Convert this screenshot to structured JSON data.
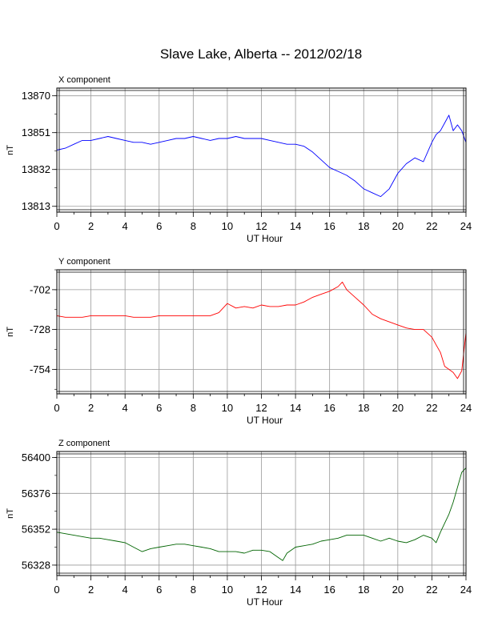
{
  "title": "Slave Lake, Alberta -- 2012/02/18",
  "chart_data": [
    {
      "type": "line",
      "panel_title": "X component",
      "xlabel": "UT Hour",
      "ylabel": "nT",
      "xlim": [
        0,
        24
      ],
      "ylim": [
        13810,
        13874
      ],
      "xticks": [
        0,
        2,
        4,
        6,
        8,
        10,
        12,
        14,
        16,
        18,
        20,
        22,
        24
      ],
      "yticks": [
        13813,
        13832,
        13851,
        13870
      ],
      "grid": true,
      "color": "#0000ff",
      "series": [
        {
          "x": [
            0,
            0.5,
            1,
            1.5,
            2,
            2.5,
            3,
            3.5,
            4,
            4.5,
            5,
            5.5,
            6,
            6.5,
            7,
            7.5,
            8,
            8.5,
            9,
            9.5,
            10,
            10.5,
            11,
            11.5,
            12,
            12.5,
            13,
            13.5,
            14,
            14.5,
            15,
            15.5,
            16,
            16.5,
            17,
            17.5,
            18,
            18.5,
            19,
            19.5,
            20,
            20.5,
            21,
            21.5,
            22,
            22.25,
            22.5,
            22.75,
            23,
            23.25,
            23.5,
            23.75,
            24
          ],
          "y": [
            13842,
            13843,
            13845,
            13847,
            13847,
            13848,
            13849,
            13848,
            13847,
            13846,
            13846,
            13845,
            13846,
            13847,
            13848,
            13848,
            13849,
            13848,
            13847,
            13848,
            13848,
            13849,
            13848,
            13848,
            13848,
            13847,
            13846,
            13845,
            13845,
            13844,
            13841,
            13837,
            13833,
            13831,
            13829,
            13826,
            13822,
            13820,
            13818,
            13822,
            13830,
            13835,
            13838,
            13836,
            13846,
            13850,
            13852,
            13856,
            13860,
            13852,
            13855,
            13852,
            13846
          ]
        }
      ]
    },
    {
      "type": "line",
      "panel_title": "Y component",
      "xlabel": "UT Hour",
      "ylabel": "nT",
      "xlim": [
        0,
        24
      ],
      "ylim": [
        -770,
        -689
      ],
      "xticks": [
        0,
        2,
        4,
        6,
        8,
        10,
        12,
        14,
        16,
        18,
        20,
        22,
        24
      ],
      "yticks": [
        -702,
        -728,
        -754
      ],
      "grid": true,
      "color": "#ff0000",
      "series": [
        {
          "x": [
            0,
            0.5,
            1,
            1.5,
            2,
            2.5,
            3,
            3.5,
            4,
            4.5,
            5,
            5.5,
            6,
            6.5,
            7,
            7.5,
            8,
            8.5,
            9,
            9.5,
            10,
            10.5,
            11,
            11.5,
            12,
            12.5,
            13,
            13.5,
            14,
            14.5,
            15,
            15.5,
            16,
            16.5,
            16.75,
            17,
            17.5,
            18,
            18.5,
            19,
            19.5,
            20,
            20.5,
            21,
            21.5,
            22,
            22.25,
            22.5,
            22.75,
            23,
            23.25,
            23.5,
            23.75,
            24
          ],
          "y": [
            -719,
            -720,
            -720,
            -720,
            -719,
            -719,
            -719,
            -719,
            -719,
            -720,
            -720,
            -720,
            -719,
            -719,
            -719,
            -719,
            -719,
            -719,
            -719,
            -717,
            -711,
            -714,
            -713,
            -714,
            -712,
            -713,
            -713,
            -712,
            -712,
            -710,
            -707,
            -705,
            -703,
            -700,
            -697,
            -702,
            -707,
            -712,
            -718,
            -721,
            -723,
            -725,
            -727,
            -728,
            -728,
            -733,
            -738,
            -743,
            -752,
            -754,
            -756,
            -760,
            -755,
            -730
          ]
        }
      ]
    },
    {
      "type": "line",
      "panel_title": "Z component",
      "xlabel": "UT Hour",
      "ylabel": "nT",
      "xlim": [
        0,
        24
      ],
      "ylim": [
        56321,
        56404
      ],
      "xticks": [
        0,
        2,
        4,
        6,
        8,
        10,
        12,
        14,
        16,
        18,
        20,
        22,
        24
      ],
      "yticks": [
        56400,
        56376,
        56352,
        56328
      ],
      "grid": true,
      "color": "#006400",
      "series": [
        {
          "x": [
            0,
            0.5,
            1,
            1.5,
            2,
            2.5,
            3,
            3.5,
            4,
            4.5,
            5,
            5.5,
            6,
            6.5,
            7,
            7.5,
            8,
            8.5,
            9,
            9.5,
            10,
            10.5,
            11,
            11.5,
            12,
            12.5,
            13,
            13.25,
            13.5,
            14,
            14.5,
            15,
            15.5,
            16,
            16.5,
            17,
            17.5,
            18,
            18.5,
            19,
            19.5,
            20,
            20.5,
            21,
            21.5,
            22,
            22.25,
            22.5,
            22.75,
            23,
            23.25,
            23.5,
            23.75,
            24
          ],
          "y": [
            56350,
            56349,
            56348,
            56347,
            56346,
            56346,
            56345,
            56344,
            56343,
            56340,
            56337,
            56339,
            56340,
            56341,
            56342,
            56342,
            56341,
            56340,
            56339,
            56337,
            56337,
            56337,
            56336,
            56338,
            56338,
            56337,
            56333,
            56331,
            56336,
            56340,
            56341,
            56342,
            56344,
            56345,
            56346,
            56348,
            56348,
            56348,
            56346,
            56344,
            56346,
            56344,
            56343,
            56345,
            56348,
            56346,
            56343,
            56350,
            56356,
            56362,
            56370,
            56380,
            56390,
            56393
          ]
        }
      ]
    }
  ]
}
